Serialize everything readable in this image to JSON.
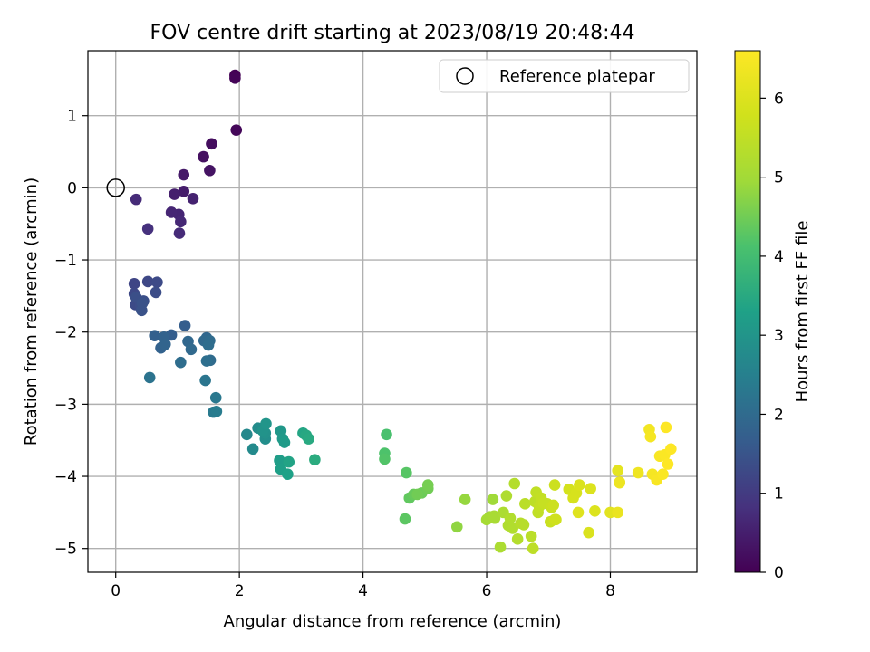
{
  "chart_data": {
    "type": "scatter",
    "title": "FOV centre drift starting at 2023/08/19 20:48:44",
    "xlabel": "Angular distance from reference (arcmin)",
    "ylabel": "Rotation from reference (arcmin)",
    "xlim": [
      -0.45,
      9.4
    ],
    "ylim": [
      -5.33,
      1.9
    ],
    "xticks": [
      0,
      2,
      4,
      6,
      8
    ],
    "yticks": [
      -5,
      -4,
      -3,
      -2,
      -1,
      0,
      1
    ],
    "grid": true,
    "legend": {
      "position": "top-right",
      "label": "Reference platepar"
    },
    "reference_point": {
      "x": 0,
      "y": 0
    },
    "colorbar": {
      "label": "Hours from first FF file",
      "range": [
        0,
        6.6
      ],
      "ticks": [
        0,
        1,
        2,
        3,
        4,
        5,
        6
      ],
      "colormap": "viridis"
    },
    "series": [
      {
        "x": [
          1.93,
          1.93,
          1.95,
          1.55,
          1.42,
          1.52,
          1.1,
          1.1,
          0.95,
          1.25,
          1.02,
          0.9,
          1.05,
          0.33,
          0.52,
          1.03,
          0.3,
          0.3,
          0.52,
          0.67,
          0.32,
          0.65,
          0.4,
          0.45,
          0.33,
          0.42,
          0.43,
          1.12,
          0.9,
          0.63,
          0.73,
          0.78,
          0.8,
          1.17,
          1.47,
          1.43,
          1.22,
          1.52,
          1.53,
          1.5,
          1.05,
          1.47,
          0.55,
          1.45,
          1.62,
          1.58,
          1.63,
          2.12,
          2.22,
          2.3,
          2.42,
          2.42,
          2.38,
          2.43,
          2.67,
          2.7,
          2.73,
          2.65,
          2.67,
          2.78,
          2.8,
          3.03,
          3.08,
          3.12,
          3.22,
          4.38,
          4.35,
          4.35,
          4.7,
          4.68,
          4.75,
          4.82,
          4.95,
          5.05,
          5.05,
          4.88,
          5.52,
          5.65,
          6.1,
          6.05,
          6.0,
          6.13,
          6.12,
          6.22,
          6.27,
          6.32,
          6.35,
          6.38,
          6.42,
          6.45,
          6.5,
          6.55,
          6.6,
          6.62,
          6.72,
          6.75,
          6.78,
          6.8,
          6.83,
          6.85,
          6.88,
          6.92,
          6.98,
          7.03,
          7.05,
          7.08,
          7.1,
          7.1,
          7.12,
          7.33,
          7.4,
          7.45,
          7.5,
          7.65,
          7.68,
          7.75,
          7.48,
          8.0,
          8.12,
          8.15,
          8.12,
          8.15,
          8.45,
          8.63,
          8.65,
          8.68,
          8.75,
          8.8,
          8.85,
          8.88,
          8.9,
          8.93,
          8.98
        ],
        "y": [
          1.56,
          1.52,
          0.8,
          0.61,
          0.43,
          0.24,
          0.18,
          -0.05,
          -0.09,
          -0.15,
          -0.37,
          -0.34,
          -0.47,
          -0.16,
          -0.57,
          -0.63,
          -1.33,
          -1.47,
          -1.3,
          -1.31,
          -1.62,
          -1.45,
          -1.63,
          -1.57,
          -1.52,
          -1.7,
          -1.6,
          -1.91,
          -2.04,
          -2.05,
          -2.22,
          -2.07,
          -2.17,
          -2.13,
          -2.08,
          -2.12,
          -2.24,
          -2.12,
          -2.39,
          -2.18,
          -2.42,
          -2.4,
          -2.63,
          -2.67,
          -2.91,
          -3.11,
          -3.1,
          -3.42,
          -3.62,
          -3.33,
          -3.48,
          -3.4,
          -3.37,
          -3.27,
          -3.37,
          -3.48,
          -3.53,
          -3.78,
          -3.9,
          -3.97,
          -3.8,
          -3.4,
          -3.43,
          -3.48,
          -3.77,
          -3.42,
          -3.68,
          -3.76,
          -3.95,
          -4.59,
          -4.3,
          -4.25,
          -4.23,
          -4.17,
          -4.12,
          -4.25,
          -4.7,
          -4.32,
          -4.32,
          -4.56,
          -4.6,
          -4.58,
          -4.55,
          -4.98,
          -4.5,
          -4.27,
          -4.68,
          -4.58,
          -4.72,
          -4.1,
          -4.87,
          -4.65,
          -4.67,
          -4.38,
          -4.83,
          -5.0,
          -4.35,
          -4.22,
          -4.5,
          -4.42,
          -4.3,
          -4.37,
          -4.38,
          -4.63,
          -4.43,
          -4.4,
          -4.12,
          -4.6,
          -4.6,
          -4.18,
          -4.3,
          -4.23,
          -4.12,
          -4.78,
          -4.17,
          -4.48,
          -4.5,
          -4.5,
          -3.92,
          -4.08,
          -4.5,
          -4.09,
          -3.95,
          -3.35,
          -3.45,
          -3.97,
          -4.05,
          -3.72,
          -3.97,
          -3.7,
          -3.32,
          -3.83,
          -3.62
        ],
        "hours": [
          0.0,
          0.05,
          0.1,
          0.2,
          0.25,
          0.3,
          0.4,
          0.45,
          0.5,
          0.55,
          0.6,
          0.62,
          0.65,
          0.7,
          0.8,
          0.7,
          1.2,
          1.25,
          1.25,
          1.3,
          1.3,
          1.35,
          1.35,
          1.4,
          1.4,
          1.45,
          1.45,
          1.7,
          1.7,
          1.75,
          1.8,
          1.8,
          1.85,
          1.9,
          1.9,
          1.95,
          1.95,
          2.0,
          2.0,
          2.05,
          2.05,
          2.1,
          2.2,
          2.25,
          2.3,
          2.35,
          2.4,
          2.7,
          2.75,
          2.8,
          2.85,
          2.9,
          2.95,
          3.0,
          3.05,
          3.1,
          3.15,
          3.2,
          3.25,
          3.3,
          3.35,
          3.4,
          3.45,
          3.5,
          3.55,
          4.1,
          4.15,
          4.2,
          4.25,
          4.3,
          4.35,
          4.4,
          4.45,
          4.5,
          4.55,
          4.5,
          4.8,
          4.85,
          4.95,
          5.0,
          5.05,
          5.1,
          5.1,
          5.15,
          5.15,
          5.2,
          5.2,
          5.25,
          5.25,
          5.3,
          5.3,
          5.35,
          5.35,
          5.4,
          5.4,
          5.45,
          5.45,
          5.5,
          5.5,
          5.55,
          5.55,
          5.6,
          5.6,
          5.65,
          5.65,
          5.7,
          5.7,
          5.75,
          5.75,
          5.85,
          5.9,
          5.9,
          5.95,
          5.95,
          6.0,
          6.0,
          6.05,
          6.1,
          6.15,
          6.2,
          6.25,
          6.3,
          6.35,
          6.4,
          6.45,
          6.45,
          6.5,
          6.5,
          6.55,
          6.55,
          6.6,
          6.6,
          6.6
        ]
      }
    ]
  }
}
